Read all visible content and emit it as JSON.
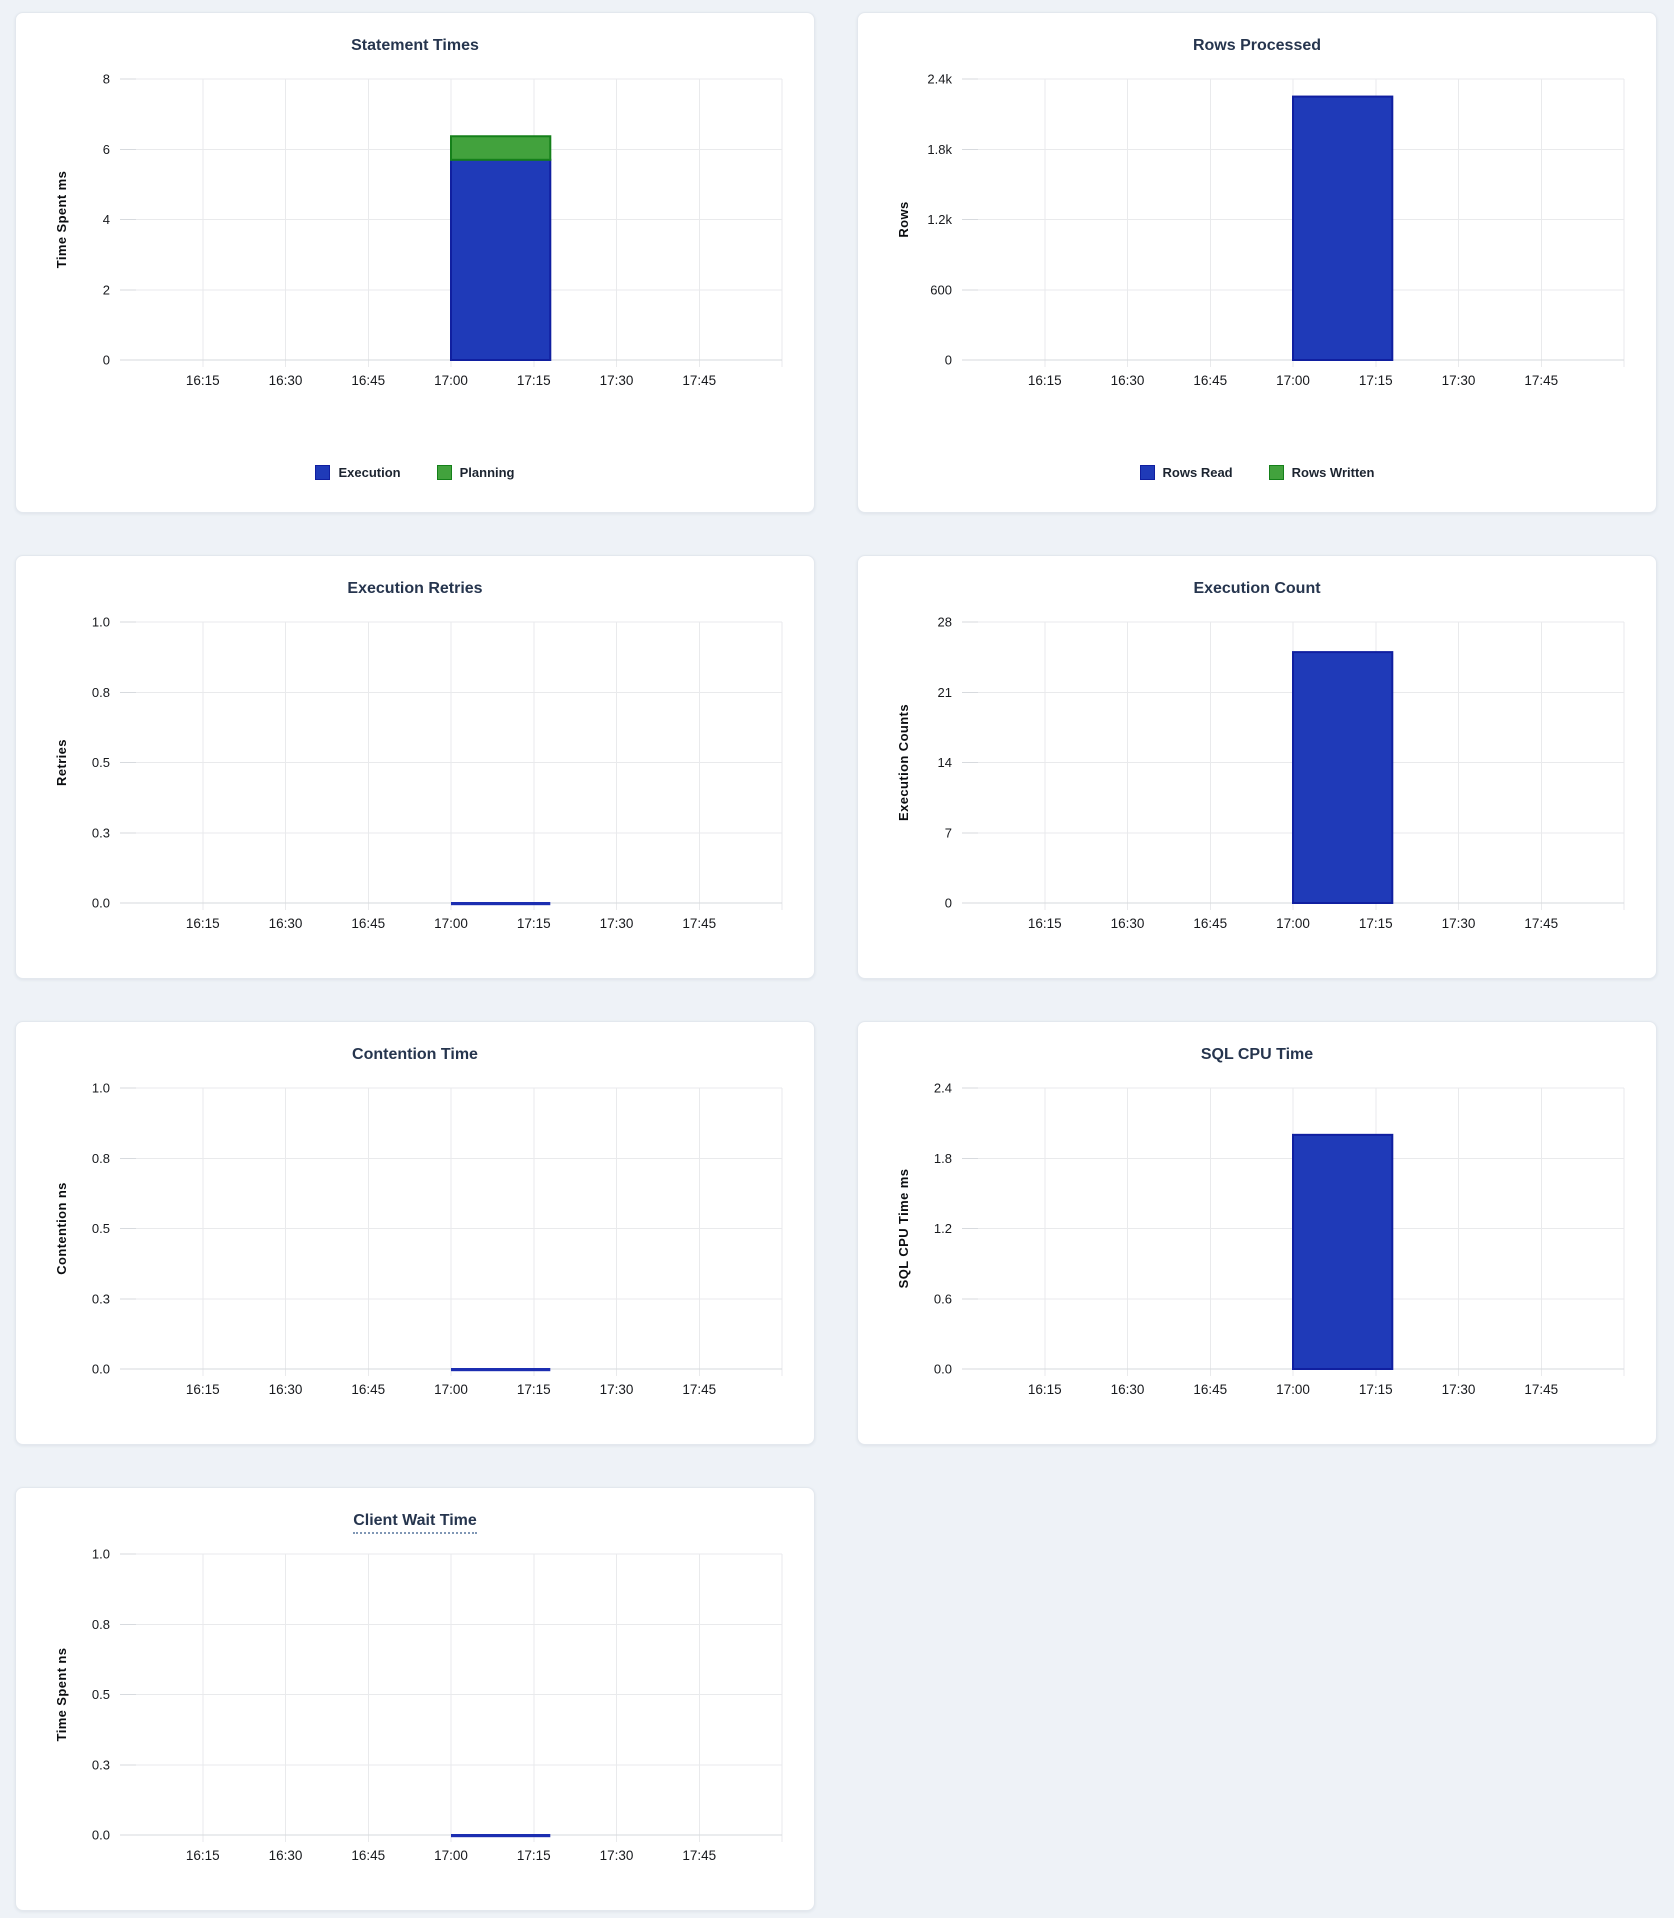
{
  "colors": {
    "page_background": "#eef2f7",
    "card_background": "#ffffff",
    "title_text": "#26354e",
    "tick_text": "#17191d",
    "axis_label_text": "#0b0d10",
    "grid_line": "#e9eaec",
    "axis_stub": "#d7dade",
    "baseline": "#d6d9dd",
    "legend_text": "#1c2430",
    "bar_blue": "#1f3ab8",
    "bar_blue_border": "#101fa0",
    "bar_green": "#42a23d",
    "bar_green_border": "#15801a",
    "zero_line": "#1c2eb1",
    "tooltip_underline": "#8097b5"
  },
  "chart_data": [
    {
      "id": "statement-times",
      "type": "bar",
      "title": "Statement Times",
      "ylabel": "Time Spent ms",
      "ylim": [
        0,
        8
      ],
      "y_ticks": [
        "8",
        "6",
        "4",
        "2",
        "0"
      ],
      "x_ticks": [
        "16:15",
        "16:30",
        "16:45",
        "17:00",
        "17:15",
        "17:30",
        "17:45"
      ],
      "x_range": [
        "16:00",
        "18:00"
      ],
      "bar_interval": [
        "17:00",
        "17:18"
      ],
      "series": [
        {
          "name": "Execution",
          "color": "blue",
          "value": 5.7
        },
        {
          "name": "Planning",
          "color": "green",
          "value": 0.67
        }
      ],
      "legend": [
        {
          "label": "Execution",
          "color": "blue"
        },
        {
          "label": "Planning",
          "color": "green"
        }
      ],
      "title_underline": false
    },
    {
      "id": "rows-processed",
      "type": "bar",
      "title": "Rows Processed",
      "ylabel": "Rows",
      "ylim": [
        0,
        2400
      ],
      "y_ticks": [
        "2.4k",
        "1.8k",
        "1.2k",
        "600",
        "0"
      ],
      "x_ticks": [
        "16:15",
        "16:30",
        "16:45",
        "17:00",
        "17:15",
        "17:30",
        "17:45"
      ],
      "x_range": [
        "16:00",
        "18:00"
      ],
      "bar_interval": [
        "17:00",
        "17:18"
      ],
      "series": [
        {
          "name": "Rows Read",
          "color": "blue",
          "value": 2250
        },
        {
          "name": "Rows Written",
          "color": "green",
          "value": 0
        }
      ],
      "legend": [
        {
          "label": "Rows Read",
          "color": "blue"
        },
        {
          "label": "Rows Written",
          "color": "green"
        }
      ],
      "title_underline": false
    },
    {
      "id": "execution-retries",
      "type": "bar",
      "title": "Execution Retries",
      "ylabel": "Retries",
      "ylim": [
        0,
        1
      ],
      "y_ticks": [
        "1.0",
        "0.8",
        "0.5",
        "0.3",
        "0.0"
      ],
      "x_ticks": [
        "16:15",
        "16:30",
        "16:45",
        "17:00",
        "17:15",
        "17:30",
        "17:45"
      ],
      "x_range": [
        "16:00",
        "18:00"
      ],
      "bar_interval": [
        "17:00",
        "17:18"
      ],
      "series": [
        {
          "name": "Retries",
          "color": "blue",
          "value": 0
        }
      ],
      "title_underline": false
    },
    {
      "id": "execution-count",
      "type": "bar",
      "title": "Execution Count",
      "ylabel": "Execution Counts",
      "ylim": [
        0,
        28
      ],
      "y_ticks": [
        "28",
        "21",
        "14",
        "7",
        "0"
      ],
      "x_ticks": [
        "16:15",
        "16:30",
        "16:45",
        "17:00",
        "17:15",
        "17:30",
        "17:45"
      ],
      "x_range": [
        "16:00",
        "18:00"
      ],
      "bar_interval": [
        "17:00",
        "17:18"
      ],
      "series": [
        {
          "name": "Execution Count",
          "color": "blue",
          "value": 25
        }
      ],
      "title_underline": false
    },
    {
      "id": "contention-time",
      "type": "bar",
      "title": "Contention Time",
      "ylabel": "Contention ns",
      "ylim": [
        0,
        1
      ],
      "y_ticks": [
        "1.0",
        "0.8",
        "0.5",
        "0.3",
        "0.0"
      ],
      "x_ticks": [
        "16:15",
        "16:30",
        "16:45",
        "17:00",
        "17:15",
        "17:30",
        "17:45"
      ],
      "x_range": [
        "16:00",
        "18:00"
      ],
      "bar_interval": [
        "17:00",
        "17:18"
      ],
      "series": [
        {
          "name": "Contention",
          "color": "blue",
          "value": 0
        }
      ],
      "title_underline": false
    },
    {
      "id": "sql-cpu-time",
      "type": "bar",
      "title": "SQL CPU Time",
      "ylabel": "SQL CPU Time ms",
      "ylim": [
        0,
        2.4
      ],
      "y_ticks": [
        "2.4",
        "1.8",
        "1.2",
        "0.6",
        "0.0"
      ],
      "x_ticks": [
        "16:15",
        "16:30",
        "16:45",
        "17:00",
        "17:15",
        "17:30",
        "17:45"
      ],
      "x_range": [
        "16:00",
        "18:00"
      ],
      "bar_interval": [
        "17:00",
        "17:18"
      ],
      "series": [
        {
          "name": "SQL CPU Time",
          "color": "blue",
          "value": 2.0
        }
      ],
      "title_underline": false
    },
    {
      "id": "client-wait-time",
      "type": "bar",
      "title": "Client Wait Time",
      "ylabel": "Time Spent ns",
      "ylim": [
        0,
        1
      ],
      "y_ticks": [
        "1.0",
        "0.8",
        "0.5",
        "0.3",
        "0.0"
      ],
      "x_ticks": [
        "16:15",
        "16:30",
        "16:45",
        "17:00",
        "17:15",
        "17:30",
        "17:45"
      ],
      "x_range": [
        "16:00",
        "18:00"
      ],
      "bar_interval": [
        "17:00",
        "17:18"
      ],
      "series": [
        {
          "name": "Client Wait",
          "color": "blue",
          "value": 0
        }
      ],
      "title_underline": true
    }
  ]
}
